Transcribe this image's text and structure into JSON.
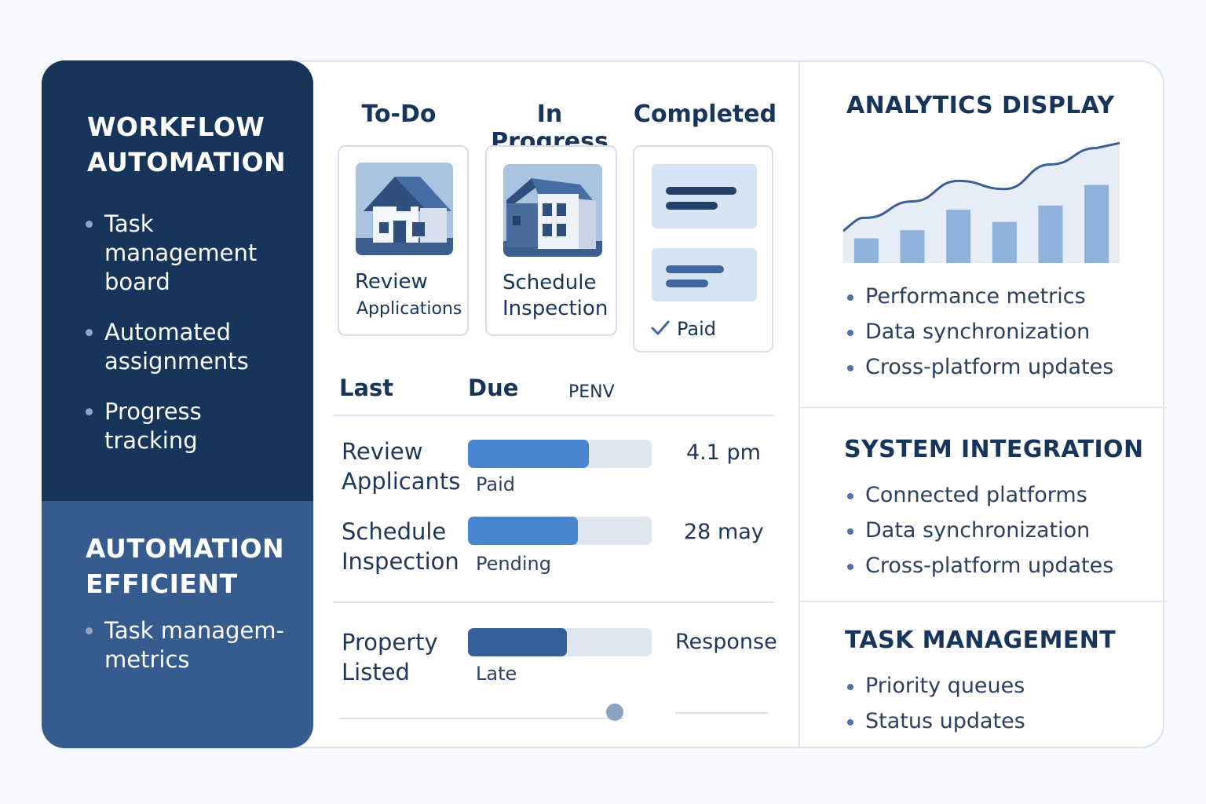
{
  "sidebar": {
    "section1": {
      "title_line1": "WORKFLOW",
      "title_line2": "AUTOMATION",
      "items": [
        "Task management board",
        "Automated assignments",
        "Progress tracking"
      ]
    },
    "section2": {
      "title_line1": "AUTOMATION",
      "title_line2": "EFFICIENT",
      "items": [
        "Task managem- metrics"
      ]
    }
  },
  "board": {
    "columns": [
      "To-Do",
      "In Progress",
      "Completed"
    ],
    "cards": {
      "todo": {
        "title": "Review",
        "subtitle": "Applications",
        "icon": "house-icon"
      },
      "inprogress": {
        "title_line1": "Schedule",
        "title_line2": "Inspection",
        "icon": "building-icon"
      },
      "completed": {
        "status": "Paid",
        "icon": "document-icon",
        "check_icon": "checkmark-icon"
      }
    }
  },
  "table": {
    "headers": [
      "Last",
      "Due",
      "PENV"
    ],
    "rows": [
      {
        "task_line1": "Review",
        "task_line2": "Applicants",
        "progress": 0.66,
        "status": "Paid",
        "value": "4.1 pm",
        "color": "#4a86d0"
      },
      {
        "task_line1": "Schedule",
        "task_line2": "Inspection",
        "progress": 0.6,
        "status": "Pending",
        "value": "28 may",
        "color": "#4a86d0"
      },
      {
        "task_line1": "Property",
        "task_line2": "Listed",
        "progress": 0.54,
        "status": "Late",
        "value": "Response",
        "color": "#35609a"
      }
    ],
    "slider_level": 0.64
  },
  "analytics": {
    "title": "ANALYTICS DISPLAY",
    "items": [
      "Performance metrics",
      "Data synchronization",
      "Cross-platform updates"
    ],
    "chart": {
      "bars": [
        3,
        4,
        6.5,
        5,
        7,
        9.5
      ],
      "line": [
        5.5,
        7.5,
        10,
        9,
        12,
        14
      ]
    }
  },
  "integration": {
    "title": "SYSTEM INTEGRATION",
    "items": [
      "Connected platforms",
      "Data synchronization",
      "Cross-platform updates"
    ]
  },
  "taskmgmt": {
    "title": "TASK MANAGEMENT",
    "items": [
      "Priority queues",
      "Status updates"
    ]
  },
  "colors": {
    "sidebar_dark": "#17345b",
    "sidebar_mid": "#365b8e",
    "bar_light": "#4a86d0",
    "bar_dark": "#35609a"
  }
}
